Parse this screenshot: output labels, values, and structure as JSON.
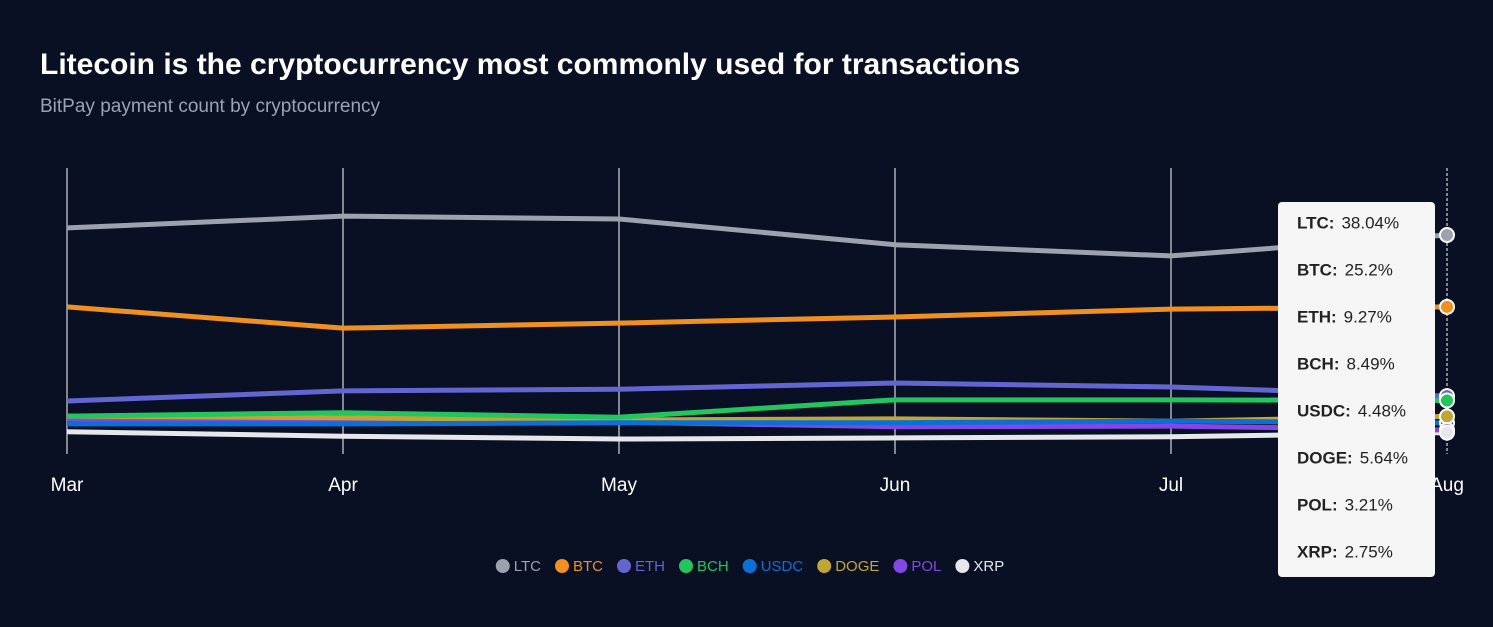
{
  "chart_data": {
    "type": "line",
    "title": "Litecoin is the cryptocurrency most commonly used for transactions",
    "subtitle": "BitPay payment count by cryptocurrency",
    "categories": [
      "Mar",
      "Apr",
      "May",
      "Jun",
      "Jul",
      "Aug"
    ],
    "ylim": [
      0,
      50
    ],
    "grid": true,
    "series": [
      {
        "name": "LTC",
        "color": "#9ca3af",
        "values": [
          39.3,
          41.4,
          40.9,
          36.3,
          34.3,
          38.04
        ]
      },
      {
        "name": "BTC",
        "color": "#f0901e",
        "values": [
          25.2,
          21.4,
          22.3,
          23.4,
          24.8,
          25.2
        ]
      },
      {
        "name": "ETH",
        "color": "#6366d1",
        "values": [
          8.4,
          10.2,
          10.5,
          11.6,
          10.9,
          9.27
        ]
      },
      {
        "name": "BCH",
        "color": "#22c55e",
        "values": [
          5.7,
          6.3,
          5.5,
          8.6,
          8.6,
          8.49
        ]
      },
      {
        "name": "USDC",
        "color": "#0a6fd6",
        "values": [
          4.3,
          4.3,
          4.5,
          4.5,
          4.8,
          4.48
        ]
      },
      {
        "name": "DOGE",
        "color": "#c2a633",
        "values": [
          5.7,
          5.4,
          5.0,
          5.2,
          4.8,
          5.64
        ]
      },
      {
        "name": "POL",
        "color": "#8247e5",
        "values": [
          5.2,
          4.8,
          4.6,
          3.8,
          3.9,
          3.21
        ]
      },
      {
        "name": "XRP",
        "color": "#e5e7eb",
        "values": [
          2.9,
          2.1,
          1.6,
          1.8,
          2.0,
          2.75
        ]
      }
    ],
    "tooltip": {
      "rows": [
        [
          "LTC:",
          "38.04%"
        ],
        [
          "BTC:",
          "25.2%"
        ],
        [
          "ETH:",
          "9.27%"
        ],
        [
          "BCH:",
          "8.49%"
        ],
        [
          "USDC:",
          "4.48%"
        ],
        [
          "DOGE:",
          "5.64%"
        ],
        [
          "POL:",
          "3.21%"
        ],
        [
          "XRP:",
          "2.75%"
        ]
      ]
    }
  }
}
